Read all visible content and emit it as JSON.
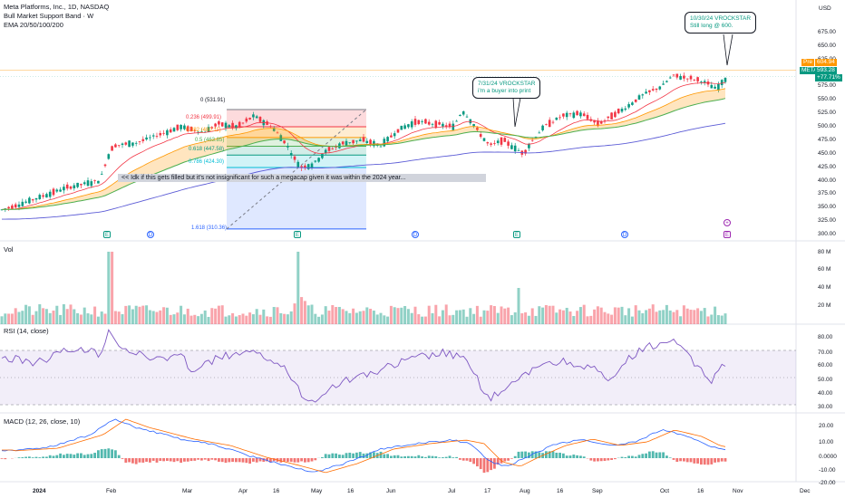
{
  "header": {
    "symbol_line": "Meta Platforms, Inc., 1D, NASDAQ",
    "indicator1": "Bull Market Support Band · W",
    "indicator2": "EMA 20/50/100/200"
  },
  "currency": "USD",
  "price_axis": [
    "675.00",
    "650.00",
    "625.00",
    "575.00",
    "550.00",
    "525.00",
    "500.00",
    "475.00",
    "450.00",
    "425.00",
    "400.00",
    "375.00",
    "350.00",
    "325.00",
    "300.00"
  ],
  "price_badges": {
    "pre": "Pre",
    "pre_price": "604.94",
    "ticker": "META",
    "last": "593.28",
    "change": "+77.71%"
  },
  "vol_axis": [
    "80 M",
    "60 M",
    "40 M",
    "20 M"
  ],
  "rsi_axis": [
    "80.00",
    "70.00",
    "60.00",
    "50.00",
    "40.00",
    "30.00"
  ],
  "macd_axis": [
    "20.00",
    "10.00",
    "0.0000",
    "-10.00",
    "-20.00"
  ],
  "panes": {
    "vol": "Vol",
    "rsi": "RSI (14, close)",
    "macd": "MACD (12, 26, close, 10)"
  },
  "x_axis": [
    "2024",
    "Feb",
    "Mar",
    "Apr",
    "16",
    "May",
    "16",
    "Jun",
    "Jul",
    "17",
    "Aug",
    "16",
    "Sep",
    "Oct",
    "16",
    "Nov",
    "Dec"
  ],
  "fib_levels": [
    {
      "label": "0 (531.91)",
      "color": "#787b86"
    },
    {
      "label": "0.236 (499.91)",
      "color": "#f23645"
    },
    {
      "label": "0.382 (480.11)",
      "color": "#ff9800"
    },
    {
      "label": "0.5 (463.85)",
      "color": "#4caf50"
    },
    {
      "label": "0.618 (447.58)",
      "color": "#089981"
    },
    {
      "label": "0.786 (424.30)",
      "color": "#00bcd4"
    },
    {
      "label": "1.618 (310.36)",
      "color": "#2962ff"
    }
  ],
  "callouts": {
    "c1_line1": "7/31/24 VROCKSTAR",
    "c1_line2": "i'm a buyer into print",
    "c2_line1": "10/30/24 VROCKSTAR",
    "c2_line2": "Still long @ 600."
  },
  "note": "<< Idk if this gets filled but it's not insignificant for such a megacap given it was within the 2024 year...",
  "events": [
    "E",
    "D",
    "E",
    "D",
    "E",
    "D",
    "E"
  ],
  "colors": {
    "up": "#089981",
    "down": "#f23645",
    "ema20": "#f23645",
    "ema50": "#ff9800",
    "ema100": "#4caf50",
    "ema200": "#5b5bd6",
    "rsi": "#7e57c2"
  }
}
